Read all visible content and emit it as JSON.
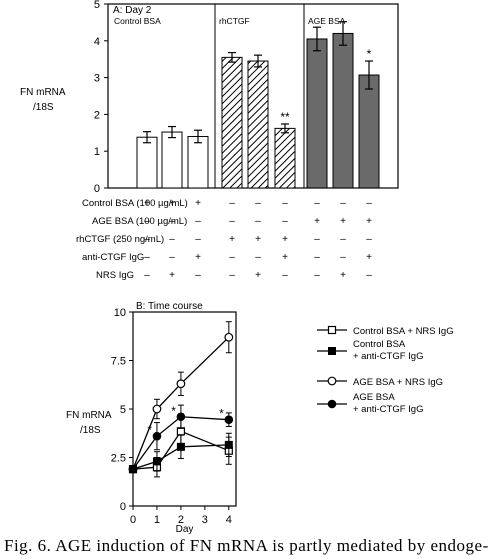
{
  "chart_data": [
    {
      "type": "bar",
      "title": "A: Day 2",
      "ylabel_lines": [
        "FN mRNA",
        "/18S"
      ],
      "ylim": [
        0,
        5
      ],
      "yticks": [
        0,
        1,
        2,
        3,
        4,
        5
      ],
      "groups": [
        {
          "label": "Control BSA",
          "fill": "white"
        },
        {
          "label": "rhCTGF",
          "fill": "hatched"
        },
        {
          "label": "AGE BSA",
          "fill": "gray"
        }
      ],
      "bars": [
        {
          "group": 0,
          "value": 1.38,
          "error": 0.15,
          "annotation": ""
        },
        {
          "group": 0,
          "value": 1.52,
          "error": 0.15,
          "annotation": ""
        },
        {
          "group": 0,
          "value": 1.4,
          "error": 0.17,
          "annotation": ""
        },
        {
          "group": 1,
          "value": 3.55,
          "error": 0.13,
          "annotation": ""
        },
        {
          "group": 1,
          "value": 3.45,
          "error": 0.16,
          "annotation": ""
        },
        {
          "group": 1,
          "value": 1.62,
          "error": 0.12,
          "annotation": "**"
        },
        {
          "group": 2,
          "value": 4.05,
          "error": 0.32,
          "annotation": ""
        },
        {
          "group": 2,
          "value": 4.2,
          "error": 0.32,
          "annotation": ""
        },
        {
          "group": 2,
          "value": 3.07,
          "error": 0.38,
          "annotation": "*"
        }
      ],
      "treatment_table": {
        "rows": [
          {
            "label": "Control BSA (100 µg/mL)",
            "marks": [
              "+",
              "+",
              "+",
              "–",
              "–",
              "–",
              "–",
              "–",
              "–"
            ]
          },
          {
            "label": "AGE BSA (100 µg/mL)",
            "marks": [
              "–",
              "–",
              "–",
              "–",
              "–",
              "–",
              "+",
              "+",
              "+"
            ]
          },
          {
            "label": "rhCTGF (250 ng/mL)",
            "marks": [
              "–",
              "–",
              "–",
              "+",
              "+",
              "+",
              "–",
              "–",
              "–"
            ]
          },
          {
            "label": "anti-CTGF IgG",
            "marks": [
              "–",
              "–",
              "+",
              "–",
              "–",
              "+",
              "–",
              "–",
              "+"
            ]
          },
          {
            "label": "NRS IgG",
            "marks": [
              "–",
              "+",
              "–",
              "–",
              "+",
              "–",
              "–",
              "+",
              "–"
            ]
          }
        ]
      }
    },
    {
      "type": "line",
      "title": "B: Time course",
      "ylabel_lines": [
        "FN mRNA",
        "/18S"
      ],
      "xlabel": "Day",
      "xlim": [
        0,
        4.3
      ],
      "ylim": [
        0,
        10
      ],
      "xticks": [
        0,
        1,
        2,
        3,
        4
      ],
      "yticks": [
        0,
        2.5,
        5,
        7.5,
        10
      ],
      "ytick_labels": [
        "0",
        "2.5",
        "5",
        "7.5",
        "10"
      ],
      "x": [
        0,
        1,
        2,
        4
      ],
      "series": [
        {
          "name": "Control BSA + NRS IgG",
          "marker": "open-square",
          "values": [
            1.9,
            2.0,
            3.85,
            2.85
          ],
          "errors": [
            0.15,
            0.5,
            0.9,
            0.7
          ],
          "star": [
            false,
            false,
            false,
            false
          ]
        },
        {
          "name": "Control BSA + anti-CTGF IgG",
          "marker": "filled-square",
          "values": [
            1.9,
            2.3,
            3.05,
            3.15
          ],
          "errors": [
            0.15,
            0.5,
            0.6,
            0.6
          ],
          "star": [
            false,
            false,
            false,
            false
          ]
        },
        {
          "name": "AGE BSA + NRS IgG",
          "marker": "open-circle",
          "values": [
            1.9,
            5.0,
            6.3,
            8.7
          ],
          "errors": [
            0.15,
            0.5,
            0.6,
            0.8
          ],
          "star": [
            false,
            false,
            false,
            false
          ]
        },
        {
          "name": "AGE BSA + anti-CTGF IgG",
          "marker": "filled-circle",
          "values": [
            1.9,
            3.6,
            4.6,
            4.45
          ],
          "errors": [
            0.15,
            0.7,
            0.6,
            0.35
          ],
          "star": [
            false,
            true,
            true,
            true
          ]
        }
      ]
    }
  ],
  "caption": "Fig. 6. AGE induction of FN mRNA is partly mediated by endoge-"
}
